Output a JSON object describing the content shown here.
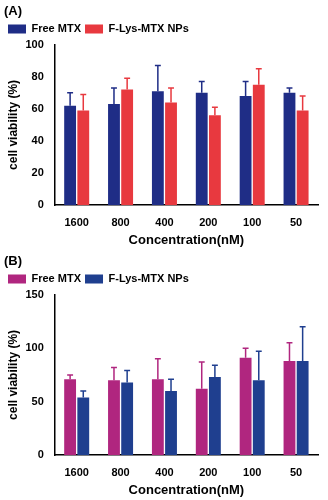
{
  "chart_data": [
    {
      "type": "bar",
      "title": "(A)",
      "x_label": "Concentration(nM)",
      "y_label": "cell viability (%)",
      "categories": [
        "1600",
        "800",
        "400",
        "200",
        "100",
        "50"
      ],
      "series": [
        {
          "name": "Free MTX",
          "color": "#1f2d86",
          "values": [
            62,
            63,
            71,
            70,
            68,
            70
          ],
          "errors": [
            8,
            10,
            16,
            7,
            9,
            3
          ]
        },
        {
          "name": "F-Lys-MTX NPs",
          "color": "#e8393f",
          "values": [
            59,
            72,
            64,
            56,
            75,
            59
          ],
          "errors": [
            10,
            7,
            9,
            5,
            10,
            9
          ]
        }
      ],
      "ylim": [
        0,
        100
      ],
      "yticks": [
        0,
        20,
        40,
        60,
        80,
        100
      ],
      "grid": false,
      "legend": "upper left"
    },
    {
      "type": "bar",
      "title": "(B)",
      "x_label": "Concentration(nM)",
      "y_label": "cell viability (%)",
      "categories": [
        "1600",
        "800",
        "400",
        "200",
        "100",
        "50"
      ],
      "series": [
        {
          "name": "Free MTX",
          "color": "#b0267f",
          "values": [
            71,
            70,
            71,
            62,
            91,
            88
          ],
          "errors": [
            4,
            12,
            19,
            25,
            9,
            17
          ]
        },
        {
          "name": "F-Lys-MTX NPs",
          "color": "#1f3f8f",
          "values": [
            54,
            68,
            60,
            73,
            70,
            88
          ],
          "errors": [
            6,
            11,
            11,
            11,
            27,
            32
          ]
        }
      ],
      "ylim": [
        0,
        150
      ],
      "yticks": [
        0,
        50,
        100,
        150
      ],
      "grid": false,
      "legend": "upper left"
    }
  ]
}
